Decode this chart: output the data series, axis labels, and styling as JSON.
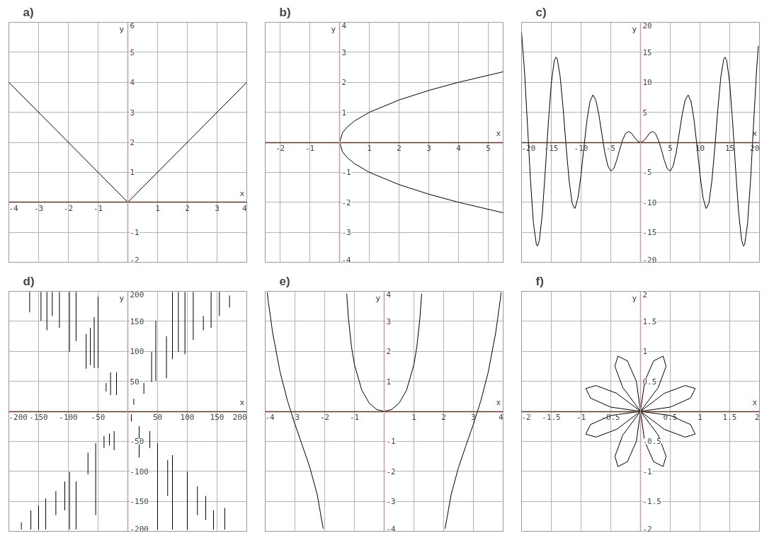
{
  "chart_data": [
    {
      "type": "line",
      "title": "a)",
      "xlabel": "x",
      "ylabel": "y",
      "xlim": [
        -4,
        4
      ],
      "ylim": [
        -2,
        6
      ],
      "xticks": [
        -4,
        -3,
        -2,
        -1,
        1,
        2,
        3,
        4
      ],
      "yticks": [
        -2,
        -1,
        1,
        2,
        3,
        4,
        5,
        6
      ],
      "grid": true,
      "series": [
        {
          "color": "#000000",
          "x": [
            -4,
            0,
            4
          ],
          "values": [
            4,
            0,
            4
          ]
        }
      ]
    },
    {
      "type": "line",
      "title": "b)",
      "xlabel": "x",
      "ylabel": "y",
      "xlim": [
        -2.5,
        5.5
      ],
      "ylim": [
        -4,
        4
      ],
      "xticks": [
        -2,
        -1,
        1,
        2,
        3,
        4,
        5
      ],
      "yticks": [
        -4,
        -3,
        -2,
        -1,
        1,
        2,
        3,
        4
      ],
      "grid": true,
      "series": [
        {
          "color": "#000000",
          "x": [
            0,
            0.1,
            0.25,
            0.5,
            1,
            2,
            3,
            4,
            5.5
          ],
          "values": [
            0,
            0.32,
            0.5,
            0.71,
            1,
            1.41,
            1.73,
            2,
            2.35
          ]
        },
        {
          "color": "#000000",
          "x": [
            0,
            0.1,
            0.25,
            0.5,
            1,
            2,
            3,
            4,
            5.5
          ],
          "values": [
            0,
            -0.32,
            -0.5,
            -0.71,
            -1,
            -1.41,
            -1.73,
            -2,
            -2.35
          ]
        }
      ]
    },
    {
      "type": "line",
      "title": "c)",
      "xlabel": "x",
      "ylabel": "y",
      "xlim": [
        -20,
        20
      ],
      "ylim": [
        -20,
        20
      ],
      "xticks": [
        -20,
        -15,
        -10,
        -5,
        5,
        10,
        15,
        20
      ],
      "yticks": [
        -20,
        -15,
        -10,
        -5,
        5,
        10,
        15,
        20
      ],
      "grid": true,
      "series": [
        {
          "color": "#000000",
          "x": [
            -20,
            -19.5,
            -19,
            -18.5,
            -18,
            -17.5,
            -17.3,
            -17,
            -16.5,
            -16,
            -15.5,
            -15,
            -14.5,
            -14.2,
            -14,
            -13.5,
            -13,
            -12.5,
            -12,
            -11.5,
            -11.1,
            -11,
            -10.5,
            -10,
            -9.5,
            -9,
            -8.5,
            -8,
            -7.5,
            -7,
            -6.5,
            -6,
            -5.5,
            -5,
            -4.5,
            -4,
            -3.5,
            -3,
            -2.5,
            -2,
            -1.5,
            -1,
            -0.5,
            0,
            0.5,
            1,
            1.5,
            2,
            2.5,
            3,
            3.5,
            4,
            4.5,
            5,
            5.5,
            6,
            6.5,
            7,
            7.5,
            8,
            8.5,
            9,
            9.5,
            10,
            10.5,
            11,
            11.1,
            11.5,
            12,
            12.5,
            13,
            13.5,
            14,
            14.2,
            14.5,
            15,
            15.5,
            16,
            16.5,
            17,
            17.3,
            17.5,
            18,
            18.5,
            19,
            19.5,
            19.8
          ],
          "values": [
            18.3,
            11.8,
            2.9,
            -6.3,
            -13.5,
            -17.1,
            -17.3,
            -16.3,
            -11.8,
            -4.6,
            3.2,
            9.8,
            13.6,
            14.2,
            13.9,
            10.9,
            5.5,
            -0.8,
            -6.4,
            -10.1,
            -11.0,
            -11.0,
            -9.2,
            -5.4,
            -0.7,
            3.7,
            6.8,
            7.9,
            7.0,
            4.6,
            1.4,
            -1.7,
            -3.9,
            -4.8,
            -4.4,
            -3.0,
            -1.2,
            0.4,
            1.5,
            1.8,
            1.5,
            0.8,
            0.2,
            0,
            0.2,
            0.8,
            1.5,
            1.8,
            1.5,
            0.4,
            -1.2,
            -3.0,
            -4.4,
            -4.8,
            -3.9,
            -1.7,
            1.4,
            4.6,
            7.0,
            7.9,
            6.8,
            3.7,
            -0.7,
            -5.4,
            -9.2,
            -11.0,
            -11.0,
            -10.1,
            -6.4,
            -0.8,
            5.5,
            10.9,
            13.9,
            14.2,
            13.6,
            9.8,
            3.2,
            -4.6,
            -11.8,
            -16.3,
            -17.3,
            -17.1,
            -13.5,
            -6.3,
            2.9,
            11.8,
            16.1
          ]
        }
      ]
    },
    {
      "type": "line",
      "title": "d)",
      "xlabel": "x",
      "ylabel": "y",
      "xlim": [
        -200,
        200
      ],
      "ylim": [
        -200,
        200
      ],
      "xticks": [
        -200,
        -150,
        -100,
        -50,
        50,
        100,
        150,
        200
      ],
      "yticks": [
        -200,
        -150,
        -100,
        -50,
        50,
        100,
        150,
        200
      ],
      "grid": true,
      "series": [
        {
          "color": "#000000",
          "x": [
            -165,
            -165,
            null,
            -146,
            -146,
            null,
            -136,
            -136,
            null,
            -127,
            -127,
            null,
            -115,
            -115,
            null,
            -98,
            -98,
            null,
            -87,
            -87,
            null,
            -70,
            -70,
            null,
            -63,
            -63,
            null,
            -56.5,
            -56.5,
            null,
            -50,
            -50,
            null,
            -36.5,
            -36.5,
            null,
            -29,
            -29,
            null,
            -19,
            -19,
            null,
            10,
            10,
            null,
            27,
            27,
            null,
            40,
            40,
            null,
            47,
            47,
            null,
            65,
            65,
            null,
            75,
            75,
            null,
            85,
            85,
            null,
            96,
            96,
            null,
            110,
            110,
            null,
            127,
            127,
            null,
            140,
            140,
            null,
            154,
            154,
            null,
            171,
            171
          ],
          "values": [
            199,
            165,
            null,
            199,
            151,
            null,
            199,
            135,
            null,
            199,
            159,
            null,
            199,
            139,
            null,
            199,
            99,
            null,
            199,
            117,
            null,
            129,
            71,
            null,
            139,
            77,
            null,
            157,
            72,
            null,
            191,
            72,
            null,
            47,
            33,
            null,
            65,
            27,
            null,
            65,
            27,
            null,
            21,
            11,
            null,
            47,
            29,
            null,
            99,
            49,
            null,
            151,
            51,
            null,
            125,
            55,
            null,
            199,
            87,
            null,
            199,
            99,
            null,
            199,
            95,
            null,
            199,
            119,
            null,
            159,
            135,
            null,
            199,
            139,
            null,
            199,
            159,
            null,
            193,
            173
          ]
        },
        {
          "color": "#000000",
          "x": [
            -179,
            -179,
            null,
            -163,
            -163,
            null,
            -150,
            -150,
            null,
            -138,
            -138,
            null,
            -121,
            -121,
            null,
            -106,
            -106,
            null,
            -98,
            -98,
            null,
            -87,
            -87,
            null,
            -67,
            -67,
            null,
            -54,
            -54,
            null,
            -40,
            -40,
            null,
            -31,
            -31,
            null,
            -23,
            -23,
            null,
            6,
            6,
            null,
            19,
            19,
            null,
            37,
            37,
            null,
            50,
            50,
            null,
            67,
            67,
            null,
            75,
            75,
            null,
            100,
            100,
            null,
            117,
            117,
            null,
            131,
            131,
            null,
            144,
            144,
            null,
            163,
            163
          ],
          "values": [
            -185,
            -197,
            null,
            -165,
            -197,
            null,
            -157,
            -197,
            null,
            -145,
            -197,
            null,
            -133,
            -173,
            null,
            -117,
            -165,
            null,
            -101,
            -197,
            null,
            -117,
            -197,
            null,
            -69,
            -105,
            null,
            -53,
            -173,
            null,
            -41,
            -61,
            null,
            -37,
            -57,
            null,
            -33,
            -65,
            null,
            -5,
            -17,
            null,
            -25,
            -77,
            null,
            -33,
            -61,
            null,
            -53,
            -197,
            null,
            -81,
            -141,
            null,
            -73,
            -197,
            null,
            -101,
            -197,
            null,
            -125,
            -173,
            null,
            -141,
            -181,
            null,
            -165,
            -197,
            null,
            -161,
            -197
          ]
        }
      ]
    },
    {
      "type": "line",
      "title": "e)",
      "xlabel": "x",
      "ylabel": "y",
      "xlim": [
        -4,
        4
      ],
      "ylim": [
        -4,
        4
      ],
      "xticks": [
        -4,
        -3,
        -2,
        -1,
        1,
        2,
        3,
        4
      ],
      "yticks": [
        -4,
        -3,
        -2,
        -1,
        1,
        2,
        3,
        4
      ],
      "grid": true,
      "series": [
        {
          "color": "#000000",
          "x": [
            -3.93,
            -3.9,
            -3.75,
            -3.5,
            -3.25,
            -3,
            -2.75,
            -2.5,
            -2.25,
            -2.05
          ],
          "values": [
            3.96,
            3.69,
            2.62,
            1.31,
            0.35,
            -0.43,
            -1.14,
            -1.87,
            -2.78,
            -3.91
          ]
        },
        {
          "color": "#000000",
          "x": [
            -1.26,
            -1.2,
            -1.1,
            -1,
            -0.75,
            -0.5,
            -0.25,
            0,
            0.25,
            0.5,
            0.75,
            1,
            1.1,
            1.2,
            1.26
          ],
          "values": [
            3.92,
            3.09,
            2.16,
            1.56,
            0.7,
            0.27,
            0.06,
            0,
            0.06,
            0.27,
            0.7,
            1.56,
            2.16,
            3.09,
            3.92
          ]
        },
        {
          "color": "#000000",
          "x": [
            2.05,
            2.25,
            2.5,
            2.75,
            3,
            3.25,
            3.5,
            3.75,
            3.9,
            3.93
          ],
          "values": [
            -3.91,
            -2.78,
            -1.87,
            -1.14,
            -0.43,
            0.35,
            1.31,
            2.62,
            3.69,
            3.96
          ]
        }
      ]
    },
    {
      "type": "line",
      "title": "f)",
      "xlabel": "x",
      "ylabel": "y",
      "xlim": [
        -2,
        2
      ],
      "ylim": [
        -2,
        2
      ],
      "xticks": [
        -2,
        -1.5,
        -1,
        -0.5,
        0.5,
        1,
        1.5,
        2
      ],
      "yticks": [
        -2,
        -1.5,
        -1,
        -0.5,
        0.5,
        1,
        1.5,
        2
      ],
      "grid": true,
      "series": [
        {
          "color": "#000000",
          "x": [
            0,
            0.5,
            0.84,
            0.92,
            null,
            0.92,
            0.75,
            0.4,
            0,
            null,
            0,
            0.3,
            0.43,
            null,
            0.43,
            0.38,
            0.22,
            0.07,
            0,
            null,
            0,
            -0.07,
            -0.22,
            -0.38,
            -0.43,
            null,
            -0.43,
            -0.3,
            0,
            null,
            0,
            -0.4,
            -0.75,
            -0.92,
            null,
            -0.92,
            -0.84,
            -0.5,
            0,
            null,
            0,
            -0.5,
            -0.84,
            -0.92,
            null,
            -0.92,
            -0.75,
            -0.4,
            0,
            null,
            0,
            -0.3,
            -0.43,
            null,
            -0.43,
            -0.38,
            -0.22,
            -0.07,
            0,
            null,
            0,
            0.07,
            0.22,
            0.38,
            0.43,
            null,
            0.43,
            0.3,
            0,
            null,
            0,
            0.4,
            0.75,
            0.92,
            null,
            0.92,
            0.84,
            0.5,
            0
          ],
          "values": [
            0,
            0.07,
            0.22,
            0.38,
            null,
            0.38,
            0.43,
            0.3,
            0,
            null,
            0,
            0.4,
            0.75,
            null,
            0.75,
            0.92,
            0.84,
            0.5,
            0,
            null,
            0,
            0.5,
            0.84,
            0.92,
            0.75,
            null,
            0.75,
            0.4,
            0,
            null,
            0,
            0.3,
            0.43,
            0.38,
            null,
            0.38,
            0.22,
            0.07,
            0,
            null,
            0,
            -0.07,
            -0.22,
            -0.38,
            null,
            -0.38,
            -0.43,
            -0.3,
            0,
            null,
            0,
            -0.4,
            -0.75,
            null,
            -0.75,
            -0.92,
            -0.84,
            -0.5,
            0,
            null,
            0,
            -0.5,
            -0.84,
            -0.92,
            -0.75,
            null,
            -0.75,
            -0.4,
            0,
            null,
            0,
            -0.3,
            -0.43,
            -0.38,
            null,
            -0.38,
            -0.22,
            -0.07,
            0
          ]
        }
      ]
    }
  ]
}
